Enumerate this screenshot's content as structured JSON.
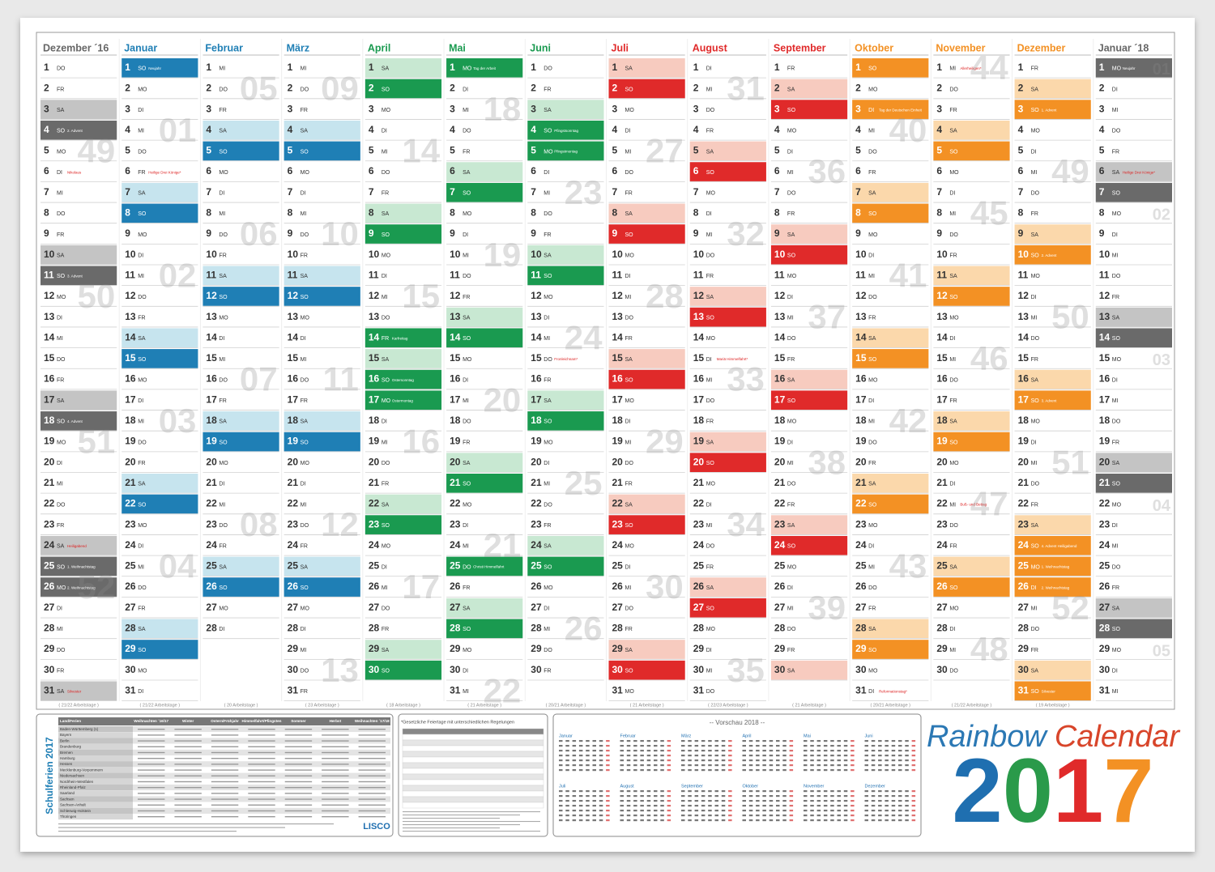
{
  "day_numbers": [
    1,
    2,
    3,
    4,
    5,
    6,
    7,
    8,
    9,
    10,
    11,
    12,
    13,
    14,
    15,
    16,
    17,
    18,
    19,
    20,
    21,
    22,
    23,
    24,
    25,
    26,
    27,
    28,
    29,
    30,
    31
  ],
  "months": [
    {
      "name": "Dezember ´16",
      "header_color": "#666666",
      "light": "#c4c4c4",
      "dark": "#6a6a6a",
      "weekdays": [
        "DO",
        "FR",
        "SA",
        "SO",
        "MO",
        "DI",
        "MI",
        "DO",
        "FR",
        "SA",
        "SO",
        "MO",
        "DI",
        "MI",
        "DO",
        "FR",
        "SA",
        "SO",
        "MO",
        "DI",
        "MI",
        "DO",
        "FR",
        "SA",
        "SO",
        "MO",
        "DI",
        "MI",
        "DO",
        "FR",
        "SA"
      ],
      "weeks": [
        {
          "day": 5,
          "label": "49"
        },
        {
          "day": 12,
          "label": "50"
        },
        {
          "day": 19,
          "label": "51"
        },
        {
          "day": 26,
          "label": "52"
        }
      ],
      "holidays": [
        {
          "day": 4,
          "label": "2. Advent",
          "public": false
        },
        {
          "day": 6,
          "label": "Nikolaus",
          "public": false
        },
        {
          "day": 11,
          "label": "3. Advent",
          "public": false
        },
        {
          "day": 18,
          "label": "4. Advent",
          "public": false
        },
        {
          "day": 24,
          "label": "Heiligabend",
          "public": false
        },
        {
          "day": 25,
          "label": "1. Weihnachtstag",
          "public": true
        },
        {
          "day": 26,
          "label": "2. Weihnachtstag",
          "public": true
        },
        {
          "day": 31,
          "label": "Silvester",
          "public": false
        }
      ],
      "workdays": "( 21/22 Arbeitstage )"
    },
    {
      "name": "Januar",
      "header_color": "#1f7fb5",
      "light": "#c6e4ee",
      "dark": "#1f7fb5",
      "weekdays": [
        "SO",
        "MO",
        "DI",
        "MI",
        "DO",
        "FR",
        "SA",
        "SO",
        "MO",
        "DI",
        "MI",
        "DO",
        "FR",
        "SA",
        "SO",
        "MO",
        "DI",
        "MI",
        "DO",
        "FR",
        "SA",
        "SO",
        "MO",
        "DI",
        "MI",
        "DO",
        "FR",
        "SA",
        "SO",
        "MO",
        "DI"
      ],
      "weeks": [
        {
          "day": 4,
          "label": "01"
        },
        {
          "day": 11,
          "label": "02"
        },
        {
          "day": 18,
          "label": "03"
        },
        {
          "day": 25,
          "label": "04"
        }
      ],
      "holidays": [
        {
          "day": 1,
          "label": "Neujahr",
          "public": true
        },
        {
          "day": 6,
          "label": "Heilige Drei Könige*",
          "public": false
        }
      ],
      "workdays": "( 21/22 Arbeitstage )"
    },
    {
      "name": "Februar",
      "header_color": "#1f7fb5",
      "light": "#c6e4ee",
      "dark": "#1f7fb5",
      "weekdays": [
        "MI",
        "DO",
        "FR",
        "SA",
        "SO",
        "MO",
        "DI",
        "MI",
        "DO",
        "FR",
        "SA",
        "SO",
        "MO",
        "DI",
        "MI",
        "DO",
        "FR",
        "SA",
        "SO",
        "MO",
        "DI",
        "MI",
        "DO",
        "FR",
        "SA",
        "SO",
        "MO",
        "DI"
      ],
      "weeks": [
        {
          "day": 2,
          "label": "05"
        },
        {
          "day": 9,
          "label": "06"
        },
        {
          "day": 16,
          "label": "07"
        },
        {
          "day": 23,
          "label": "08"
        }
      ],
      "holidays": [],
      "workdays": "( 20 Arbeitstage )"
    },
    {
      "name": "März",
      "header_color": "#1f7fb5",
      "light": "#c6e4ee",
      "dark": "#1f7fb5",
      "weekdays": [
        "MI",
        "DO",
        "FR",
        "SA",
        "SO",
        "MO",
        "DI",
        "MI",
        "DO",
        "FR",
        "SA",
        "SO",
        "MO",
        "DI",
        "MI",
        "DO",
        "FR",
        "SA",
        "SO",
        "MO",
        "DI",
        "MI",
        "DO",
        "FR",
        "SA",
        "SO",
        "MO",
        "DI",
        "MI",
        "DO",
        "FR"
      ],
      "weeks": [
        {
          "day": 2,
          "label": "09"
        },
        {
          "day": 9,
          "label": "10"
        },
        {
          "day": 16,
          "label": "11"
        },
        {
          "day": 23,
          "label": "12"
        },
        {
          "day": 30,
          "label": "13"
        }
      ],
      "holidays": [],
      "workdays": "( 23 Arbeitstage )"
    },
    {
      "name": "April",
      "header_color": "#1a9a50",
      "light": "#c8e8d2",
      "dark": "#1a9a50",
      "weekdays": [
        "SA",
        "SO",
        "MO",
        "DI",
        "MI",
        "DO",
        "FR",
        "SA",
        "SO",
        "MO",
        "DI",
        "MI",
        "DO",
        "FR",
        "SA",
        "SO",
        "MO",
        "DI",
        "MI",
        "DO",
        "FR",
        "SA",
        "SO",
        "MO",
        "DI",
        "MI",
        "DO",
        "FR",
        "SA",
        "SO"
      ],
      "weeks": [
        {
          "day": 5,
          "label": "14"
        },
        {
          "day": 12,
          "label": "15"
        },
        {
          "day": 19,
          "label": "16"
        },
        {
          "day": 26,
          "label": "17"
        }
      ],
      "holidays": [
        {
          "day": 14,
          "label": "Karfreitag",
          "public": true
        },
        {
          "day": 16,
          "label": "Ostersonntag",
          "public": true
        },
        {
          "day": 17,
          "label": "Ostermontag",
          "public": true
        }
      ],
      "workdays": "( 18 Arbeitstage )"
    },
    {
      "name": "Mai",
      "header_color": "#1a9a50",
      "light": "#c8e8d2",
      "dark": "#1a9a50",
      "weekdays": [
        "MO",
        "DI",
        "MI",
        "DO",
        "FR",
        "SA",
        "SO",
        "MO",
        "DI",
        "MI",
        "DO",
        "FR",
        "SA",
        "SO",
        "MO",
        "DI",
        "MI",
        "DO",
        "FR",
        "SA",
        "SO",
        "MO",
        "DI",
        "MI",
        "DO",
        "FR",
        "SA",
        "SO",
        "MO",
        "DI",
        "MI"
      ],
      "weeks": [
        {
          "day": 3,
          "label": "18"
        },
        {
          "day": 10,
          "label": "19"
        },
        {
          "day": 17,
          "label": "20"
        },
        {
          "day": 24,
          "label": "21"
        },
        {
          "day": 31,
          "label": "22"
        }
      ],
      "holidays": [
        {
          "day": 1,
          "label": "Tag der Arbeit",
          "public": true
        },
        {
          "day": 25,
          "label": "Christi Himmelfahrt",
          "public": true
        }
      ],
      "workdays": "( 21 Arbeitstage )"
    },
    {
      "name": "Juni",
      "header_color": "#1a9a50",
      "light": "#c8e8d2",
      "dark": "#1a9a50",
      "weekdays": [
        "DO",
        "FR",
        "SA",
        "SO",
        "MO",
        "DI",
        "MI",
        "DO",
        "FR",
        "SA",
        "SO",
        "MO",
        "DI",
        "MI",
        "DO",
        "FR",
        "SA",
        "SO",
        "MO",
        "DI",
        "MI",
        "DO",
        "FR",
        "SA",
        "SO",
        "MO",
        "DI",
        "MI",
        "DO",
        "FR"
      ],
      "weeks": [
        {
          "day": 7,
          "label": "23"
        },
        {
          "day": 14,
          "label": "24"
        },
        {
          "day": 21,
          "label": "25"
        },
        {
          "day": 28,
          "label": "26"
        }
      ],
      "holidays": [
        {
          "day": 4,
          "label": "Pfingstsonntag",
          "public": true
        },
        {
          "day": 5,
          "label": "Pfingstmontag",
          "public": true
        },
        {
          "day": 15,
          "label": "Fronleichnam*",
          "public": false
        }
      ],
      "workdays": "( 20/21 Arbeitstage )"
    },
    {
      "name": "Juli",
      "header_color": "#e02a2a",
      "light": "#f7cbbf",
      "dark": "#e02a2a",
      "weekdays": [
        "SA",
        "SO",
        "MO",
        "DI",
        "MI",
        "DO",
        "FR",
        "SA",
        "SO",
        "MO",
        "DI",
        "MI",
        "DO",
        "FR",
        "SA",
        "SO",
        "MO",
        "DI",
        "MI",
        "DO",
        "FR",
        "SA",
        "SO",
        "MO",
        "DI",
        "MI",
        "DO",
        "FR",
        "SA",
        "SO",
        "MO"
      ],
      "weeks": [
        {
          "day": 5,
          "label": "27"
        },
        {
          "day": 12,
          "label": "28"
        },
        {
          "day": 19,
          "label": "29"
        },
        {
          "day": 26,
          "label": "30"
        }
      ],
      "holidays": [],
      "workdays": "( 21 Arbeitstage )"
    },
    {
      "name": "August",
      "header_color": "#e02a2a",
      "light": "#f7cbbf",
      "dark": "#e02a2a",
      "weekdays": [
        "DI",
        "MI",
        "DO",
        "FR",
        "SA",
        "SO",
        "MO",
        "DI",
        "MI",
        "DO",
        "FR",
        "SA",
        "SO",
        "MO",
        "DI",
        "MI",
        "DO",
        "FR",
        "SA",
        "SO",
        "MO",
        "DI",
        "MI",
        "DO",
        "FR",
        "SA",
        "SO",
        "MO",
        "DI",
        "MI",
        "DO"
      ],
      "weeks": [
        {
          "day": 2,
          "label": "31"
        },
        {
          "day": 9,
          "label": "32"
        },
        {
          "day": 16,
          "label": "33"
        },
        {
          "day": 23,
          "label": "34"
        },
        {
          "day": 30,
          "label": "35"
        }
      ],
      "holidays": [
        {
          "day": 15,
          "label": "Mariä Himmelfahrt*",
          "public": false
        }
      ],
      "workdays": "( 22/23 Arbeitstage )"
    },
    {
      "name": "September",
      "header_color": "#e02a2a",
      "light": "#f7cbbf",
      "dark": "#e02a2a",
      "weekdays": [
        "FR",
        "SA",
        "SO",
        "MO",
        "DI",
        "MI",
        "DO",
        "FR",
        "SA",
        "SO",
        "MO",
        "DI",
        "MI",
        "DO",
        "FR",
        "SA",
        "SO",
        "MO",
        "DI",
        "MI",
        "DO",
        "FR",
        "SA",
        "SO",
        "MO",
        "DI",
        "MI",
        "DO",
        "FR",
        "SA"
      ],
      "weeks": [
        {
          "day": 6,
          "label": "36"
        },
        {
          "day": 13,
          "label": "37"
        },
        {
          "day": 20,
          "label": "38"
        },
        {
          "day": 27,
          "label": "39"
        }
      ],
      "holidays": [],
      "workdays": "( 21 Arbeitstage )"
    },
    {
      "name": "Oktober",
      "header_color": "#f39124",
      "light": "#fbd8ab",
      "dark": "#f39124",
      "weekdays": [
        "SO",
        "MO",
        "DI",
        "MI",
        "DO",
        "FR",
        "SA",
        "SO",
        "MO",
        "DI",
        "MI",
        "DO",
        "FR",
        "SA",
        "SO",
        "MO",
        "DI",
        "MI",
        "DO",
        "FR",
        "SA",
        "SO",
        "MO",
        "DI",
        "MI",
        "DO",
        "FR",
        "SA",
        "SO",
        "MO",
        "DI"
      ],
      "weeks": [
        {
          "day": 4,
          "label": "40"
        },
        {
          "day": 11,
          "label": "41"
        },
        {
          "day": 18,
          "label": "42"
        },
        {
          "day": 25,
          "label": "43"
        }
      ],
      "holidays": [
        {
          "day": 3,
          "label": "Tag der Deutschen Einheit",
          "public": true
        },
        {
          "day": 31,
          "label": "Reformationstag*",
          "public": false
        }
      ],
      "workdays": "( 20/21 Arbeitstage )"
    },
    {
      "name": "November",
      "header_color": "#f39124",
      "light": "#fbd8ab",
      "dark": "#f39124",
      "weekdays": [
        "MI",
        "DO",
        "FR",
        "SA",
        "SO",
        "MO",
        "DI",
        "MI",
        "DO",
        "FR",
        "SA",
        "SO",
        "MO",
        "DI",
        "MI",
        "DO",
        "FR",
        "SA",
        "SO",
        "MO",
        "DI",
        "MI",
        "DO",
        "FR",
        "SA",
        "SO",
        "MO",
        "DI",
        "MI",
        "DO"
      ],
      "weeks": [
        {
          "day": 1,
          "label": "44"
        },
        {
          "day": 8,
          "label": "45"
        },
        {
          "day": 15,
          "label": "46"
        },
        {
          "day": 22,
          "label": "47"
        },
        {
          "day": 29,
          "label": "48"
        }
      ],
      "holidays": [
        {
          "day": 1,
          "label": "Allerheiligen*",
          "public": false
        },
        {
          "day": 22,
          "label": "Buß- und Bettag",
          "public": false
        }
      ],
      "workdays": "( 21/22 Arbeitstage )"
    },
    {
      "name": "Dezember",
      "header_color": "#f39124",
      "light": "#fbd8ab",
      "dark": "#f39124",
      "weekdays": [
        "FR",
        "SA",
        "SO",
        "MO",
        "DI",
        "MI",
        "DO",
        "FR",
        "SA",
        "SO",
        "MO",
        "DI",
        "MI",
        "DO",
        "FR",
        "SA",
        "SO",
        "MO",
        "DI",
        "MI",
        "DO",
        "FR",
        "SA",
        "SO",
        "MO",
        "DI",
        "MI",
        "DO",
        "FR",
        "SA",
        "SO"
      ],
      "weeks": [
        {
          "day": 6,
          "label": "49"
        },
        {
          "day": 13,
          "label": "50"
        },
        {
          "day": 20,
          "label": "51"
        },
        {
          "day": 27,
          "label": "52"
        }
      ],
      "holidays": [
        {
          "day": 3,
          "label": "1. Advent",
          "public": false
        },
        {
          "day": 10,
          "label": "2. Advent",
          "public": false
        },
        {
          "day": 17,
          "label": "3. Advent",
          "public": false
        },
        {
          "day": 24,
          "label": "4. Advent Heiligabend",
          "public": false
        },
        {
          "day": 25,
          "label": "1. Weihnachtstag",
          "public": true
        },
        {
          "day": 26,
          "label": "2. Weihnachtstag",
          "public": true
        },
        {
          "day": 31,
          "label": "Silvester",
          "public": false
        }
      ],
      "workdays": "( 19 Arbeitstage )"
    },
    {
      "name": "Januar ´18",
      "header_color": "#666666",
      "light": "#c4c4c4",
      "dark": "#6a6a6a",
      "weekdays": [
        "MO",
        "DI",
        "MI",
        "DO",
        "FR",
        "SA",
        "SO",
        "MO",
        "DI",
        "MI",
        "DO",
        "FR",
        "SA",
        "SO",
        "MO",
        "DI",
        "MI",
        "DO",
        "FR",
        "SA",
        "SO",
        "MO",
        "DI",
        "MI",
        "DO",
        "FR",
        "SA",
        "SO",
        "MO",
        "DI",
        "MI"
      ],
      "weeks": [
        {
          "day": 1,
          "label": "01"
        },
        {
          "day": 8,
          "label": "02"
        },
        {
          "day": 15,
          "label": "03"
        },
        {
          "day": 22,
          "label": "04"
        },
        {
          "day": 29,
          "label": "05"
        }
      ],
      "holidays": [
        {
          "day": 1,
          "label": "Neujahr",
          "public": true
        },
        {
          "day": 6,
          "label": "Heilige Drei Könige*",
          "public": false
        }
      ]
    }
  ],
  "school_holidays": {
    "title": "Schulferien 2017",
    "headers": [
      "Land/Ferien",
      "Weihnachten ´16/17",
      "Winter",
      "Ostern/Frühjahr",
      "Himmelfahrt/Pfingsten",
      "Sommer",
      "Herbst",
      "Weihnachten ´17/18"
    ],
    "states": [
      "Baden-Württemberg (1)",
      "Bayern",
      "Berlin",
      "Brandenburg",
      "Bremen",
      "Hamburg",
      "Hessen",
      "Mecklenburg-Vorpommern",
      "Niedersachsen",
      "Nordrhein-Westfalen",
      "Rheinland-Pfalz",
      "Saarland",
      "Sachsen",
      "Sachsen-Anhalt",
      "Schleswig-Holstein",
      "Thüringen"
    ],
    "brand": "LISCO"
  },
  "public_holidays": {
    "title": "*Gesetzliche Feiertage mit unterschiedlichen Regelungen"
  },
  "preview": {
    "title": "-- Vorschau 2018 --",
    "months": [
      "Januar",
      "Februar",
      "März",
      "April",
      "Mai",
      "Juni",
      "Juli",
      "August",
      "September",
      "Oktober",
      "November",
      "Dezember"
    ]
  },
  "logo": {
    "words": [
      {
        "text": "Rainbow",
        "color": "#2b78b4"
      },
      {
        "text": "Calendar",
        "color": "#d8452a"
      }
    ],
    "year": [
      {
        "text": "2",
        "color": "#1f6fb0"
      },
      {
        "text": "0",
        "color": "#2a9a4a"
      },
      {
        "text": "1",
        "color": "#e02a2a"
      },
      {
        "text": "7",
        "color": "#f39124"
      }
    ]
  }
}
